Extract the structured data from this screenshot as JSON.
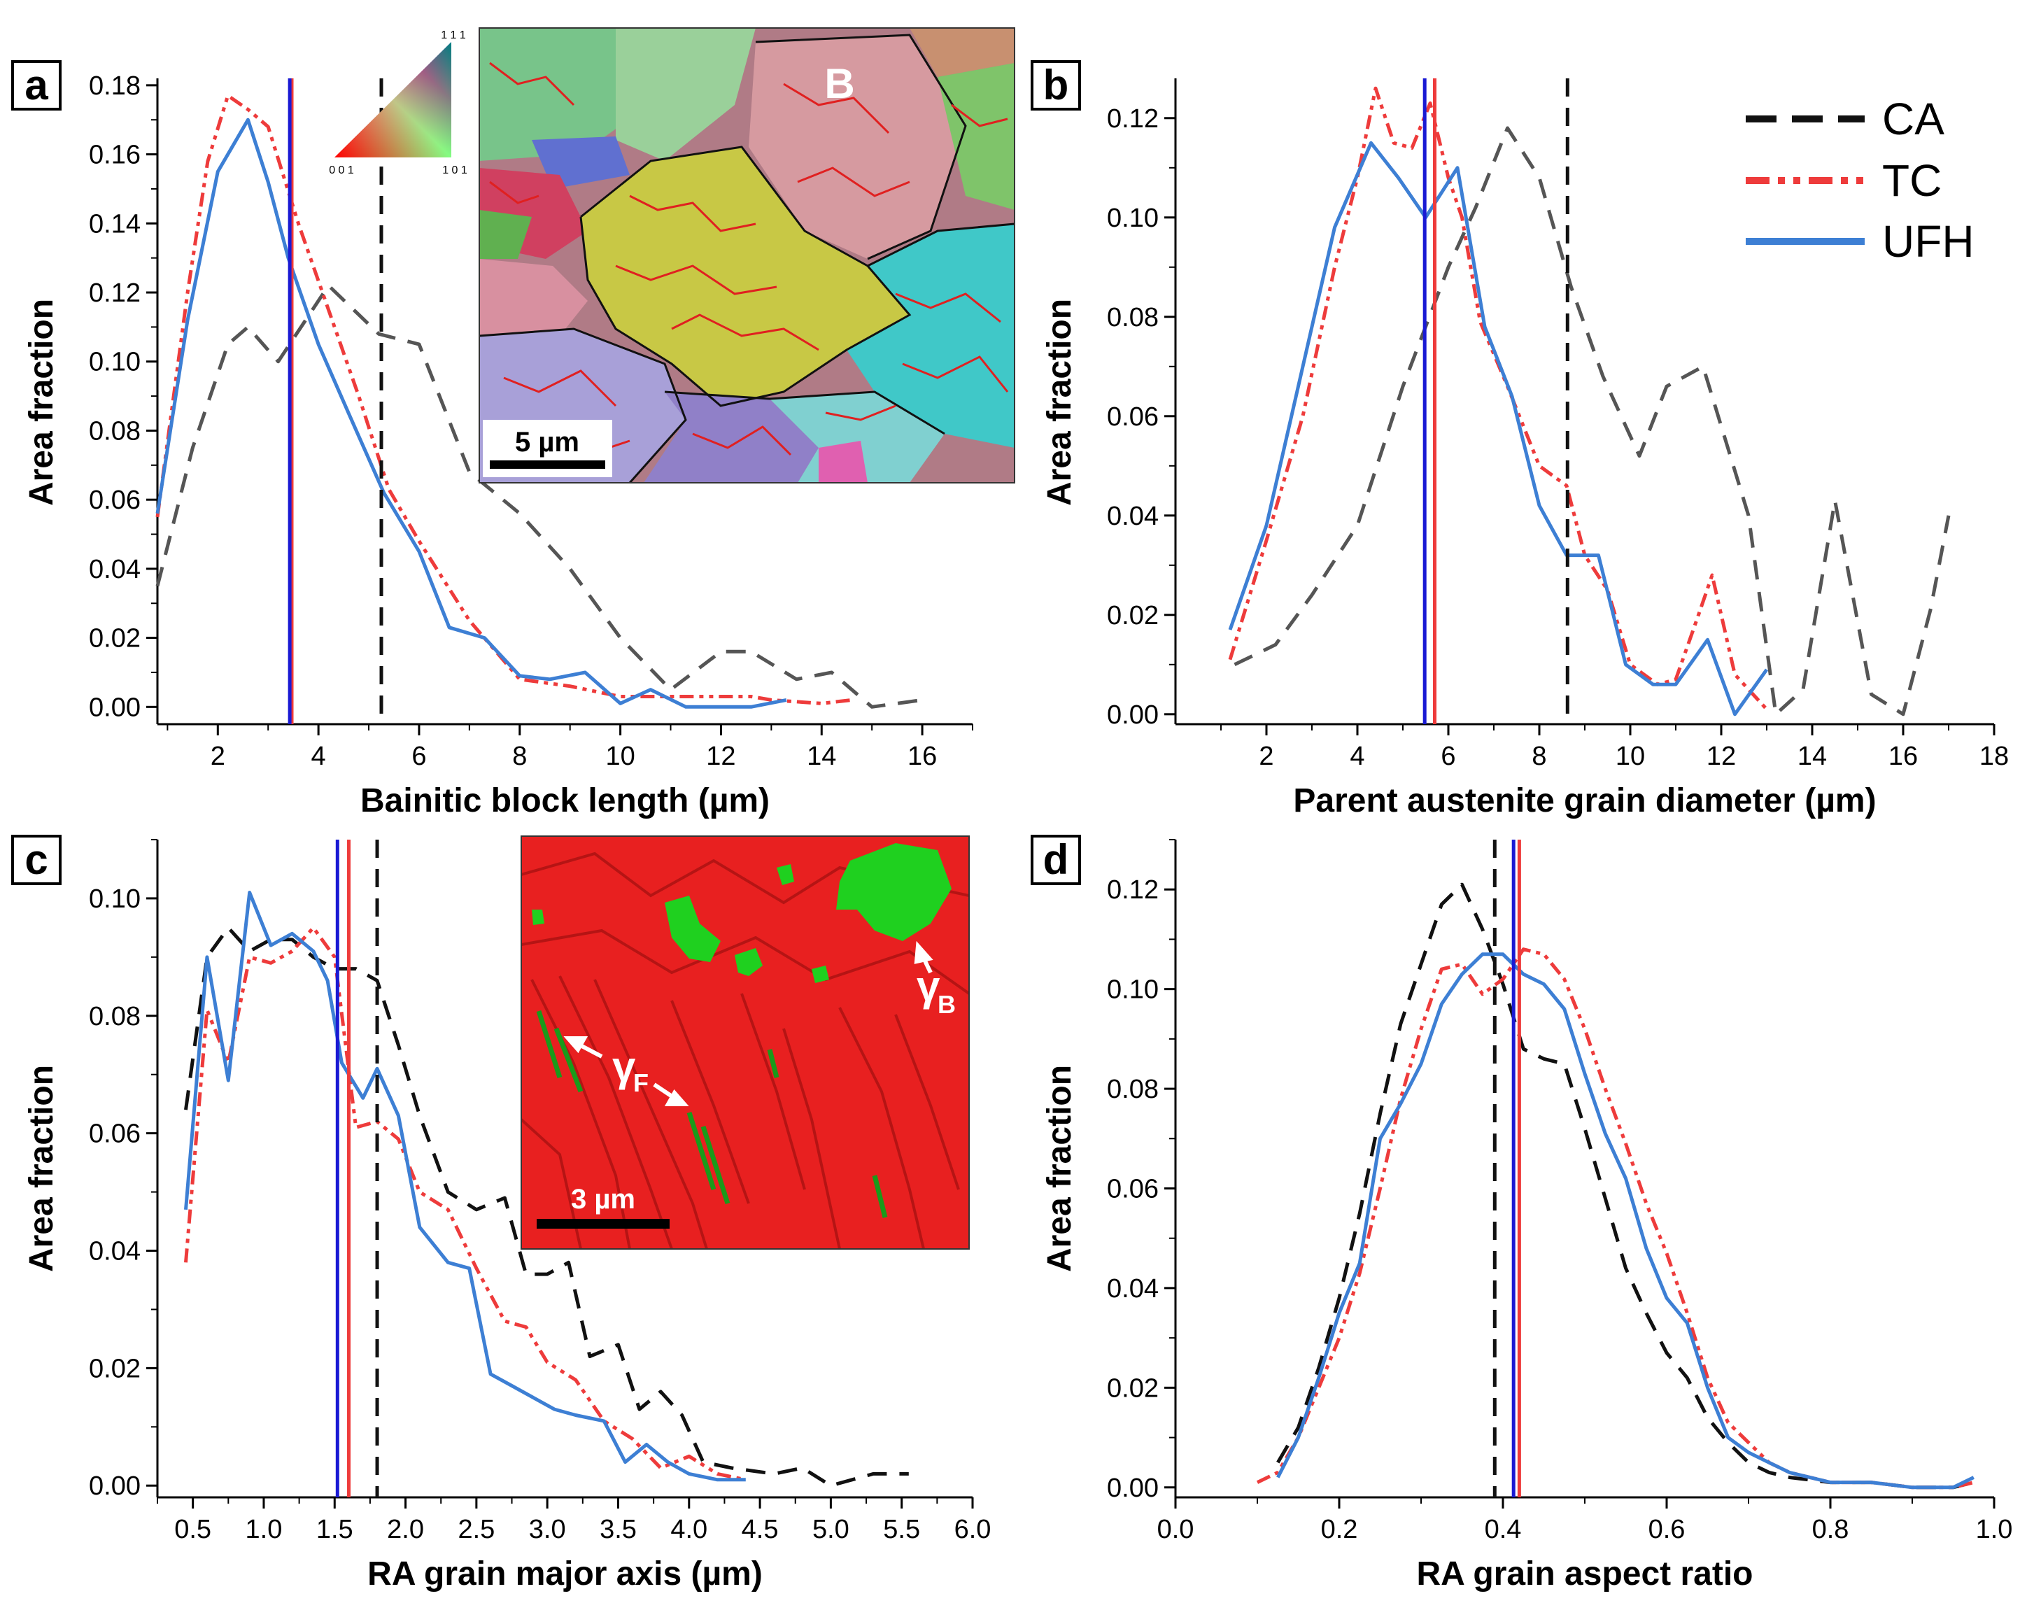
{
  "chart_data": [
    {
      "type": "line",
      "panel": "a",
      "xlabel": "Bainitic block length (µm)",
      "ylabel": "Area fraction",
      "xlim": [
        0.8,
        17
      ],
      "ylim": [
        -0.005,
        0.182
      ],
      "xticks": [
        2,
        4,
        6,
        8,
        10,
        12,
        14,
        16
      ],
      "yticks": [
        0.0,
        0.02,
        0.04,
        0.06,
        0.08,
        0.1,
        0.12,
        0.14,
        0.16,
        0.18
      ],
      "ytick_decimals": 2,
      "series": [
        {
          "name": "CA",
          "color": "#555555",
          "dash": "28,18",
          "width": 5,
          "x": [
            0.8,
            1.5,
            2.2,
            2.6,
            3.2,
            4.2,
            5.2,
            6.0,
            7.0,
            8.0,
            9.0,
            10.0,
            11.0,
            12.0,
            12.6,
            13.5,
            14.2,
            15.0,
            16.0
          ],
          "y": [
            0.035,
            0.075,
            0.105,
            0.11,
            0.1,
            0.122,
            0.108,
            0.105,
            0.068,
            0.056,
            0.04,
            0.02,
            0.005,
            0.016,
            0.016,
            0.008,
            0.01,
            0.0,
            0.002
          ]
        },
        {
          "name": "TC",
          "color": "#ee3b3b",
          "dash": "20,8,6,8,6,8",
          "width": 5,
          "x": [
            0.8,
            1.4,
            1.8,
            2.2,
            2.6,
            3.0,
            3.6,
            4.2,
            4.8,
            5.4,
            6.0,
            7.0,
            8.0,
            9.0,
            10.0,
            11.0,
            12.0,
            12.6,
            13.0,
            14.0,
            14.6
          ],
          "y": [
            0.055,
            0.12,
            0.158,
            0.177,
            0.173,
            0.168,
            0.14,
            0.115,
            0.09,
            0.063,
            0.048,
            0.025,
            0.008,
            0.006,
            0.003,
            0.003,
            0.003,
            0.003,
            0.002,
            0.001,
            0.002
          ]
        },
        {
          "name": "UFH",
          "color": "#3d7fd4",
          "dash": "",
          "width": 5,
          "x": [
            0.8,
            1.4,
            2.0,
            2.6,
            3.0,
            3.4,
            4.0,
            4.6,
            5.3,
            6.0,
            6.6,
            7.3,
            8.0,
            8.6,
            9.3,
            10.0,
            10.6,
            11.3,
            12.0,
            12.6,
            13.3
          ],
          "y": [
            0.056,
            0.112,
            0.155,
            0.17,
            0.152,
            0.13,
            0.105,
            0.085,
            0.062,
            0.045,
            0.023,
            0.02,
            0.009,
            0.008,
            0.01,
            0.001,
            0.005,
            0.0,
            0.0,
            0.0,
            0.002
          ]
        }
      ],
      "vlines": [
        {
          "x": 5.25,
          "color": "#111111",
          "dash": "26,16",
          "width": 5
        },
        {
          "x": 3.47,
          "color": "#ee3b3b",
          "dash": "",
          "width": 5
        },
        {
          "x": 3.43,
          "color": "#1a1ad4",
          "dash": "",
          "width": 5
        }
      ]
    },
    {
      "type": "line",
      "panel": "b",
      "xlabel": "Parent austenite grain diameter (µm)",
      "ylabel": "Area fraction",
      "xlim": [
        0,
        18
      ],
      "ylim": [
        -0.002,
        0.128
      ],
      "xticks": [
        2,
        4,
        6,
        8,
        10,
        12,
        14,
        16,
        18
      ],
      "yticks": [
        0.0,
        0.02,
        0.04,
        0.06,
        0.08,
        0.1,
        0.12
      ],
      "ytick_decimals": 2,
      "series": [
        {
          "name": "CA",
          "color": "#555555",
          "dash": "28,18",
          "width": 5,
          "x": [
            1.3,
            2.2,
            3.0,
            4.0,
            5.0,
            6.0,
            6.6,
            7.3,
            8.0,
            8.7,
            9.4,
            10.2,
            10.8,
            11.6,
            12.6,
            13.2,
            13.8,
            14.5,
            15.3,
            16.0,
            16.6,
            17.0
          ],
          "y": [
            0.01,
            0.014,
            0.024,
            0.038,
            0.066,
            0.09,
            0.102,
            0.118,
            0.108,
            0.086,
            0.068,
            0.052,
            0.066,
            0.07,
            0.04,
            0.0,
            0.005,
            0.043,
            0.004,
            0.0,
            0.021,
            0.04
          ]
        },
        {
          "name": "TC",
          "color": "#ee3b3b",
          "dash": "20,8,6,8,6,8",
          "width": 5,
          "x": [
            1.2,
            2.0,
            2.8,
            3.5,
            4.0,
            4.4,
            4.8,
            5.2,
            5.6,
            6.0,
            6.3,
            6.7,
            7.3,
            8.0,
            8.6,
            9.0,
            9.5,
            10.0,
            10.6,
            11.0,
            11.5,
            11.8,
            12.3,
            12.8,
            13.0
          ],
          "y": [
            0.011,
            0.035,
            0.06,
            0.09,
            0.108,
            0.126,
            0.115,
            0.114,
            0.123,
            0.108,
            0.1,
            0.079,
            0.066,
            0.05,
            0.046,
            0.032,
            0.025,
            0.01,
            0.006,
            0.007,
            0.02,
            0.028,
            0.008,
            0.003,
            0.001
          ]
        },
        {
          "name": "UFH",
          "color": "#3d7fd4",
          "dash": "",
          "width": 5,
          "x": [
            1.2,
            2.0,
            2.8,
            3.5,
            4.3,
            4.9,
            5.5,
            6.2,
            6.8,
            7.4,
            8.0,
            8.6,
            9.3,
            9.9,
            10.5,
            11.0,
            11.7,
            12.3,
            13.0
          ],
          "y": [
            0.017,
            0.038,
            0.07,
            0.098,
            0.115,
            0.108,
            0.1,
            0.11,
            0.078,
            0.064,
            0.042,
            0.032,
            0.032,
            0.01,
            0.006,
            0.006,
            0.015,
            0.0,
            0.009
          ]
        }
      ],
      "vlines": [
        {
          "x": 8.62,
          "color": "#111111",
          "dash": "26,16",
          "width": 5
        },
        {
          "x": 5.7,
          "color": "#ee3b3b",
          "dash": "",
          "width": 5
        },
        {
          "x": 5.48,
          "color": "#1a1ad4",
          "dash": "",
          "width": 5
        }
      ]
    },
    {
      "type": "line",
      "panel": "c",
      "xlabel": "RA grain major axis (µm)",
      "ylabel": "Area fraction",
      "xlim": [
        0.25,
        6.0
      ],
      "ylim": [
        -0.002,
        0.11
      ],
      "xticks": [
        0.5,
        1.0,
        1.5,
        2.0,
        2.5,
        3.0,
        3.5,
        4.0,
        4.5,
        5.0,
        5.5,
        6.0
      ],
      "yticks": [
        0.0,
        0.02,
        0.04,
        0.06,
        0.08,
        0.1
      ],
      "ytick_decimals": 2,
      "series": [
        {
          "name": "CA",
          "color": "#111111",
          "dash": "28,18",
          "width": 5,
          "x": [
            0.45,
            0.6,
            0.75,
            0.9,
            1.05,
            1.2,
            1.35,
            1.5,
            1.65,
            1.8,
            1.95,
            2.1,
            2.3,
            2.5,
            2.7,
            2.85,
            3.0,
            3.15,
            3.3,
            3.5,
            3.65,
            3.8,
            3.95,
            4.1,
            4.3,
            4.6,
            4.8,
            5.0,
            5.3,
            5.55
          ],
          "y": [
            0.064,
            0.09,
            0.095,
            0.091,
            0.093,
            0.093,
            0.09,
            0.088,
            0.088,
            0.086,
            0.075,
            0.063,
            0.05,
            0.047,
            0.049,
            0.036,
            0.036,
            0.038,
            0.022,
            0.024,
            0.013,
            0.016,
            0.012,
            0.004,
            0.003,
            0.002,
            0.003,
            0.0,
            0.002,
            0.002
          ]
        },
        {
          "name": "TC",
          "color": "#ee3b3b",
          "dash": "20,8,6,8,6,8",
          "width": 5,
          "x": [
            0.45,
            0.6,
            0.75,
            0.9,
            1.05,
            1.2,
            1.35,
            1.5,
            1.65,
            1.8,
            1.95,
            2.1,
            2.3,
            2.5,
            2.7,
            2.85,
            3.0,
            3.2,
            3.4,
            3.6,
            3.8,
            4.0,
            4.2,
            4.4
          ],
          "y": [
            0.038,
            0.081,
            0.072,
            0.09,
            0.089,
            0.091,
            0.095,
            0.09,
            0.061,
            0.062,
            0.059,
            0.05,
            0.047,
            0.037,
            0.028,
            0.027,
            0.021,
            0.018,
            0.011,
            0.008,
            0.003,
            0.005,
            0.002,
            0.001
          ]
        },
        {
          "name": "UFH",
          "color": "#3d7fd4",
          "dash": "",
          "width": 5,
          "x": [
            0.45,
            0.6,
            0.75,
            0.9,
            1.05,
            1.2,
            1.35,
            1.45,
            1.55,
            1.7,
            1.8,
            1.95,
            2.1,
            2.3,
            2.45,
            2.6,
            2.75,
            2.9,
            3.05,
            3.2,
            3.4,
            3.55,
            3.7,
            3.85,
            4.0,
            4.2,
            4.4
          ],
          "y": [
            0.047,
            0.09,
            0.069,
            0.101,
            0.092,
            0.094,
            0.091,
            0.086,
            0.072,
            0.066,
            0.071,
            0.063,
            0.044,
            0.038,
            0.037,
            0.019,
            0.017,
            0.015,
            0.013,
            0.012,
            0.011,
            0.004,
            0.007,
            0.004,
            0.002,
            0.001,
            0.001
          ]
        }
      ],
      "vlines": [
        {
          "x": 1.8,
          "color": "#111111",
          "dash": "26,16",
          "width": 5
        },
        {
          "x": 1.6,
          "color": "#ee3b3b",
          "dash": "",
          "width": 5
        },
        {
          "x": 1.52,
          "color": "#1a1ad4",
          "dash": "",
          "width": 5
        }
      ]
    },
    {
      "type": "line",
      "panel": "d",
      "xlabel": "RA grain aspect ratio",
      "ylabel": "Area fraction",
      "xlim": [
        0.0,
        1.0
      ],
      "ylim": [
        -0.002,
        0.13
      ],
      "xticks": [
        0.0,
        0.2,
        0.4,
        0.6,
        0.8,
        1.0
      ],
      "xtick_decimals": 1,
      "yticks": [
        0.0,
        0.02,
        0.04,
        0.06,
        0.08,
        0.1,
        0.12
      ],
      "ytick_decimals": 2,
      "series": [
        {
          "name": "CA",
          "color": "#111111",
          "dash": "28,18",
          "width": 5,
          "x": [
            0.125,
            0.15,
            0.175,
            0.2,
            0.225,
            0.25,
            0.275,
            0.3,
            0.325,
            0.35,
            0.375,
            0.4,
            0.425,
            0.45,
            0.475,
            0.5,
            0.525,
            0.55,
            0.575,
            0.6,
            0.625,
            0.65,
            0.675,
            0.7,
            0.725,
            0.75,
            0.8,
            0.85,
            0.9,
            0.95,
            0.975
          ],
          "y": [
            0.005,
            0.012,
            0.024,
            0.038,
            0.055,
            0.075,
            0.093,
            0.105,
            0.117,
            0.121,
            0.112,
            0.101,
            0.088,
            0.086,
            0.085,
            0.072,
            0.058,
            0.044,
            0.035,
            0.027,
            0.022,
            0.014,
            0.009,
            0.005,
            0.003,
            0.002,
            0.001,
            0.001,
            0.0,
            0.0,
            0.001
          ]
        },
        {
          "name": "TC",
          "color": "#ee3b3b",
          "dash": "20,8,6,8,6,8",
          "width": 5,
          "x": [
            0.1,
            0.125,
            0.15,
            0.175,
            0.2,
            0.225,
            0.25,
            0.275,
            0.3,
            0.325,
            0.35,
            0.375,
            0.4,
            0.425,
            0.45,
            0.475,
            0.5,
            0.525,
            0.55,
            0.575,
            0.6,
            0.625,
            0.65,
            0.675,
            0.7,
            0.725,
            0.75,
            0.8,
            0.85,
            0.9,
            0.95,
            0.975
          ],
          "y": [
            0.001,
            0.003,
            0.01,
            0.02,
            0.03,
            0.043,
            0.06,
            0.078,
            0.092,
            0.104,
            0.105,
            0.099,
            0.102,
            0.108,
            0.107,
            0.102,
            0.092,
            0.08,
            0.069,
            0.057,
            0.047,
            0.035,
            0.022,
            0.013,
            0.009,
            0.005,
            0.003,
            0.001,
            0.001,
            0.0,
            0.0,
            0.001
          ]
        },
        {
          "name": "UFH",
          "color": "#3d7fd4",
          "dash": "",
          "width": 5,
          "x": [
            0.125,
            0.15,
            0.175,
            0.2,
            0.225,
            0.25,
            0.275,
            0.3,
            0.325,
            0.35,
            0.375,
            0.4,
            0.425,
            0.45,
            0.475,
            0.5,
            0.525,
            0.55,
            0.575,
            0.6,
            0.625,
            0.65,
            0.675,
            0.7,
            0.725,
            0.75,
            0.8,
            0.85,
            0.9,
            0.95,
            0.975
          ],
          "y": [
            0.002,
            0.01,
            0.022,
            0.035,
            0.045,
            0.07,
            0.077,
            0.085,
            0.097,
            0.103,
            0.107,
            0.107,
            0.103,
            0.101,
            0.096,
            0.083,
            0.071,
            0.062,
            0.048,
            0.038,
            0.033,
            0.02,
            0.01,
            0.007,
            0.005,
            0.003,
            0.001,
            0.001,
            0.0,
            0.0,
            0.002
          ]
        }
      ],
      "vlines": [
        {
          "x": 0.39,
          "color": "#111111",
          "dash": "26,16",
          "width": 5
        },
        {
          "x": 0.42,
          "color": "#ee3b3b",
          "dash": "",
          "width": 5
        },
        {
          "x": 0.413,
          "color": "#1a1ad4",
          "dash": "",
          "width": 5
        }
      ]
    }
  ],
  "legend": {
    "entries": [
      {
        "label": "CA",
        "color": "#111111",
        "dash": "28,18"
      },
      {
        "label": "TC",
        "color": "#ee3b3b",
        "dash": "20,8,6,8,6,8"
      },
      {
        "label": "UFH",
        "color": "#3d7fd4",
        "dash": ""
      }
    ]
  },
  "panel_labels": [
    "a",
    "b",
    "c",
    "d"
  ],
  "insets": {
    "ebsd_map": {
      "grain_label": "B",
      "scale_bar": "5 µm",
      "ipf_labels": {
        "top": "1 1 1",
        "left": "0 0 1",
        "right": "1 0 1"
      }
    },
    "phase_map": {
      "scale_bar": "3 µm",
      "gamma_f": "γ",
      "gamma_f_sub": "F",
      "gamma_b": "γ",
      "gamma_b_sub": "B"
    }
  }
}
